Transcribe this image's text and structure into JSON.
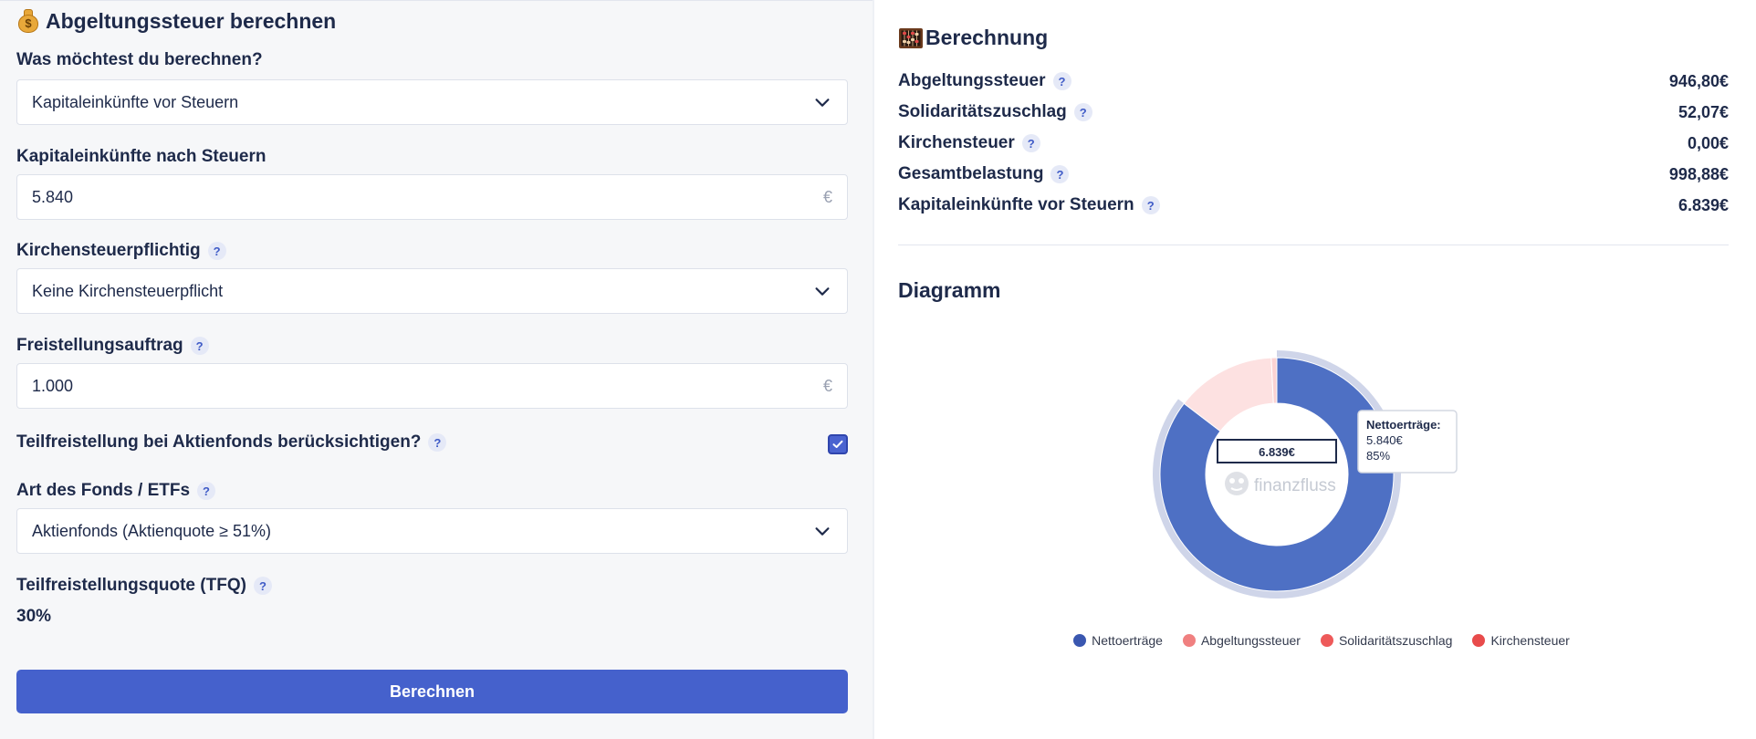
{
  "form": {
    "title": "Abgeltungssteuer berechnen",
    "calc_label": "Was möchtest du berechnen?",
    "calc_value": "Kapitaleinkünfte vor Steuern",
    "income_label": "Kapitaleinkünfte nach Steuern",
    "income_value": "5.840",
    "currency": "€",
    "church_label": "Kirchensteuerpflichtig",
    "church_value": "Keine Kirchensteuerpflicht",
    "allowance_label": "Freistellungsauftrag",
    "allowance_value": "1.000",
    "partial_label": "Teilfreistellung bei Aktienfonds berücksichtigen?",
    "partial_checked": true,
    "fund_label": "Art des Fonds / ETFs",
    "fund_value": "Aktienfonds (Aktienquote ≥ 51%)",
    "tfq_label": "Teilfreistellungsquote (TFQ)",
    "tfq_value": "30%",
    "submit_label": "Berechnen",
    "help_glyph": "?"
  },
  "result": {
    "title": "Berechnung",
    "rows": [
      {
        "label": "Abgeltungssteuer",
        "value": "946,80€"
      },
      {
        "label": "Solidaritätszuschlag",
        "value": "52,07€"
      },
      {
        "label": "Kirchensteuer",
        "value": "0,00€"
      },
      {
        "label": "Gesamtbelastung",
        "value": "998,88€"
      },
      {
        "label": "Kapitaleinkünfte vor Steuern",
        "value": "6.839€"
      }
    ]
  },
  "diagram": {
    "title": "Diagramm",
    "center_value": "6.839€",
    "watermark": "finanzfluss",
    "tooltip": {
      "title": "Nettoerträge:",
      "value": "5.840€",
      "percent": "85%"
    }
  },
  "chart_data": {
    "type": "pie",
    "categories": [
      "Nettoerträge",
      "Abgeltungssteuer",
      "Solidaritätszuschlag",
      "Kirchensteuer"
    ],
    "values": [
      5840,
      946.8,
      52.07,
      0
    ],
    "colors": [
      "#4e70c4",
      "#f08080",
      "#ee5a5a",
      "#e84b4b"
    ],
    "highlighted": "Nettoerträge",
    "legend": "bottom"
  }
}
